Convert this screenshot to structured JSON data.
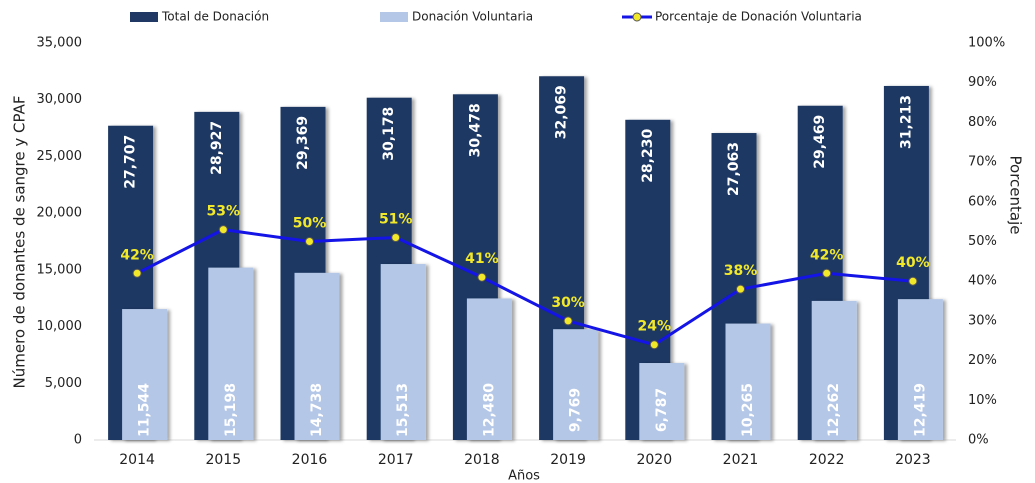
{
  "chart_data": {
    "type": "bar",
    "categories": [
      "2014",
      "2015",
      "2016",
      "2017",
      "2018",
      "2019",
      "2020",
      "2021",
      "2022",
      "2023"
    ],
    "series": [
      {
        "name": "Total de Donación",
        "color": "#1f3864",
        "type": "bar",
        "values": [
          27707,
          28927,
          29369,
          30178,
          30478,
          32069,
          28230,
          27063,
          29469,
          31213
        ],
        "value_labels": [
          "27,707",
          "28,927",
          "29,369",
          "30,178",
          "30,478",
          "32,069",
          "28,230",
          "27,063",
          "29,469",
          "31,213"
        ]
      },
      {
        "name": "Donación Voluntaria",
        "color": "#b4c7e7",
        "type": "bar",
        "values": [
          11544,
          15198,
          14738,
          15513,
          12480,
          9769,
          6787,
          10265,
          12262,
          12419
        ],
        "value_labels": [
          "11,544",
          "15,198",
          "14,738",
          "15,513",
          "12,480",
          "9,769",
          "6,787",
          "10,265",
          "12,262",
          "12,419"
        ]
      },
      {
        "name": "Porcentaje de Donación Voluntaria",
        "color": "#1414e6",
        "marker_color": "#f2e82a",
        "type": "line",
        "axis": "y2",
        "values": [
          42,
          53,
          50,
          51,
          41,
          30,
          24,
          38,
          42,
          40
        ],
        "value_labels": [
          "42%",
          "53%",
          "50%",
          "51%",
          "41%",
          "30%",
          "24%",
          "38%",
          "42%",
          "40%"
        ]
      }
    ],
    "xlabel": "Años",
    "ylabel": "Número de donantes de sangre y CPAF",
    "y2label": "Porcentaje",
    "ylim": [
      0,
      35000
    ],
    "yticks": [
      0,
      {
        "value": 5000,
        "label": "5,000"
      },
      {
        "value": 10000,
        "label": "10,000"
      },
      {
        "value": 15000,
        "label": "15,000"
      },
      {
        "value": 20000,
        "label": "20,000"
      },
      {
        "value": 25000,
        "label": "25,000"
      },
      {
        "value": 30000,
        "label": "30,000"
      },
      {
        "value": 35000,
        "label": "35,000"
      }
    ],
    "y2lim": [
      0,
      100
    ],
    "y2ticks": [
      {
        "value": 0,
        "label": "0%"
      },
      {
        "value": 10,
        "label": "10%"
      },
      {
        "value": 20,
        "label": "20%"
      },
      {
        "value": 30,
        "label": "30%"
      },
      {
        "value": 40,
        "label": "40%"
      },
      {
        "value": 50,
        "label": "50%"
      },
      {
        "value": 60,
        "label": "60%"
      },
      {
        "value": 70,
        "label": "70%"
      },
      {
        "value": 80,
        "label": "80%"
      },
      {
        "value": 90,
        "label": "90%"
      },
      {
        "value": 100,
        "label": "100%"
      }
    ],
    "legend": "top"
  }
}
